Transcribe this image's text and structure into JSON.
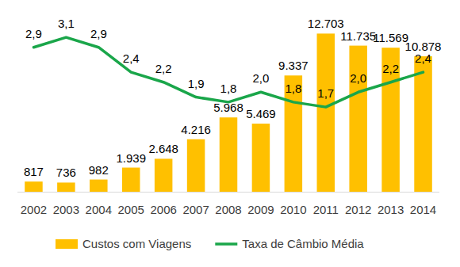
{
  "chart_data": {
    "type": "bar",
    "categories": [
      "2002",
      "2003",
      "2004",
      "2005",
      "2006",
      "2007",
      "2008",
      "2009",
      "2010",
      "2011",
      "2012",
      "2013",
      "2014"
    ],
    "series": [
      {
        "name": "Custos com Viagens",
        "type": "bar",
        "color": "#ffc000",
        "values": [
          817,
          736,
          982,
          1939,
          2648,
          4216,
          5968,
          5469,
          9337,
          12703,
          11735,
          11569,
          10878
        ],
        "value_labels": [
          "817",
          "736",
          "982",
          "1.939",
          "2.648",
          "4.216",
          "5.968",
          "5.469",
          "9.337",
          "12.703",
          "11.735",
          "11.569",
          "10.878"
        ]
      },
      {
        "name": "Taxa de Câmbio Média",
        "type": "line",
        "axis": "y2",
        "color": "#1aa64a",
        "values": [
          2.9,
          3.1,
          2.9,
          2.4,
          2.2,
          1.9,
          1.8,
          2.0,
          1.8,
          1.7,
          2.0,
          2.2,
          2.4
        ],
        "value_labels": [
          "2,9",
          "3,1",
          "2,9",
          "2,4",
          "2,2",
          "1,9",
          "1,8",
          "2,0",
          "1,8",
          "1,7",
          "2,0",
          "2,2",
          "2,4"
        ]
      }
    ],
    "ylim": [
      0,
      14000
    ],
    "y2lim": [
      0,
      3.5
    ],
    "grid": false,
    "legend": "bottom",
    "data_labels": true,
    "tick_labels": "x"
  }
}
